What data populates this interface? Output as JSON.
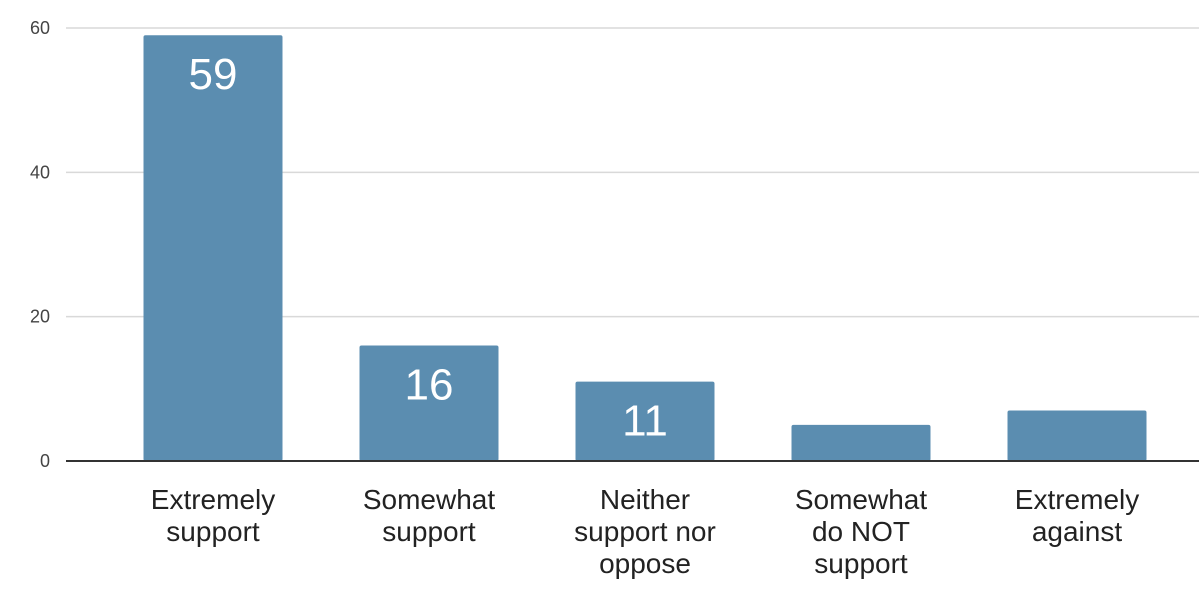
{
  "chart_data": {
    "type": "bar",
    "categories": [
      [
        "Extremely",
        "support"
      ],
      [
        "Somewhat",
        "support"
      ],
      [
        "Neither",
        "support nor",
        "oppose"
      ],
      [
        "Somewhat",
        "do NOT",
        "support"
      ],
      [
        "Extremely",
        "against"
      ]
    ],
    "values": [
      59,
      16,
      11,
      5,
      7
    ],
    "data_labels": [
      "59",
      "16",
      "11",
      "",
      ""
    ],
    "yticks": [
      0,
      20,
      40,
      60
    ],
    "ylim": [
      0,
      60
    ],
    "grid": true,
    "legend": "none",
    "title": "",
    "xlabel": "",
    "ylabel": "",
    "colors": {
      "bar": "#5b8db0",
      "data_label": "#ffffff"
    }
  }
}
